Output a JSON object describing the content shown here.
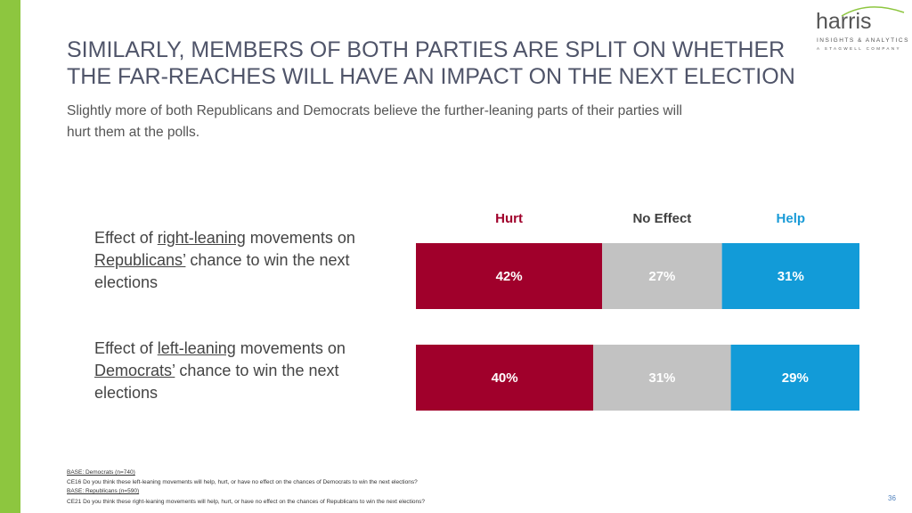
{
  "header": {
    "title_lines": [
      "SIMILARLY, MEMBERS OF BOTH PARTIES ARE SPLIT ON WHETHER",
      "THE FAR-REACHES WILL HAVE AN IMPACT ON THE NEXT ELECTION"
    ],
    "subtitle_lines": [
      "Slightly more of both Republicans and Democrats believe the further-leaning parts of their parties will",
      "hurt them at the polls."
    ]
  },
  "logo": {
    "name": "harris",
    "tagline": "INSIGHTS & ANALYTICS",
    "parent": "A STAGWELL COMPANY"
  },
  "chart_data": {
    "type": "stacked-bar-horizontal",
    "categories": [
      [
        "Effect of ",
        "right-leaning",
        " movements on ",
        "Republicans’",
        " chance to win the next elections"
      ],
      [
        "Effect of ",
        "left-leaning",
        " movements on ",
        "Democrats’",
        " chance to win the next elections"
      ]
    ],
    "series": [
      {
        "name": "Hurt",
        "color": "#a0002b",
        "values": [
          42,
          40
        ],
        "value_labels": [
          "42%",
          "40%"
        ]
      },
      {
        "name": "No Effect",
        "color": "#c2c2c2",
        "values": [
          27,
          31
        ],
        "value_labels": [
          "27%",
          "31%"
        ]
      },
      {
        "name": "Help",
        "color": "#129bd8",
        "values": [
          31,
          29
        ],
        "value_labels": [
          "31%",
          "29%"
        ]
      }
    ],
    "legend_colors": [
      "#a0002b",
      "#404040",
      "#1a9bd7"
    ],
    "xlim": [
      0,
      100
    ]
  },
  "footer": {
    "notes": [
      "BASE: Democrats (n=740)",
      "CE16 Do you think these left-leaning movements will help, hurt, or have no effect on the chances of Democrats to win the next elections?",
      "BASE: Republicans (n=590)",
      "CE21 Do you think these right-leaning movements will help, hurt, or have no effect on the chances of Republicans to win the next elections?"
    ],
    "page_number": "36"
  }
}
